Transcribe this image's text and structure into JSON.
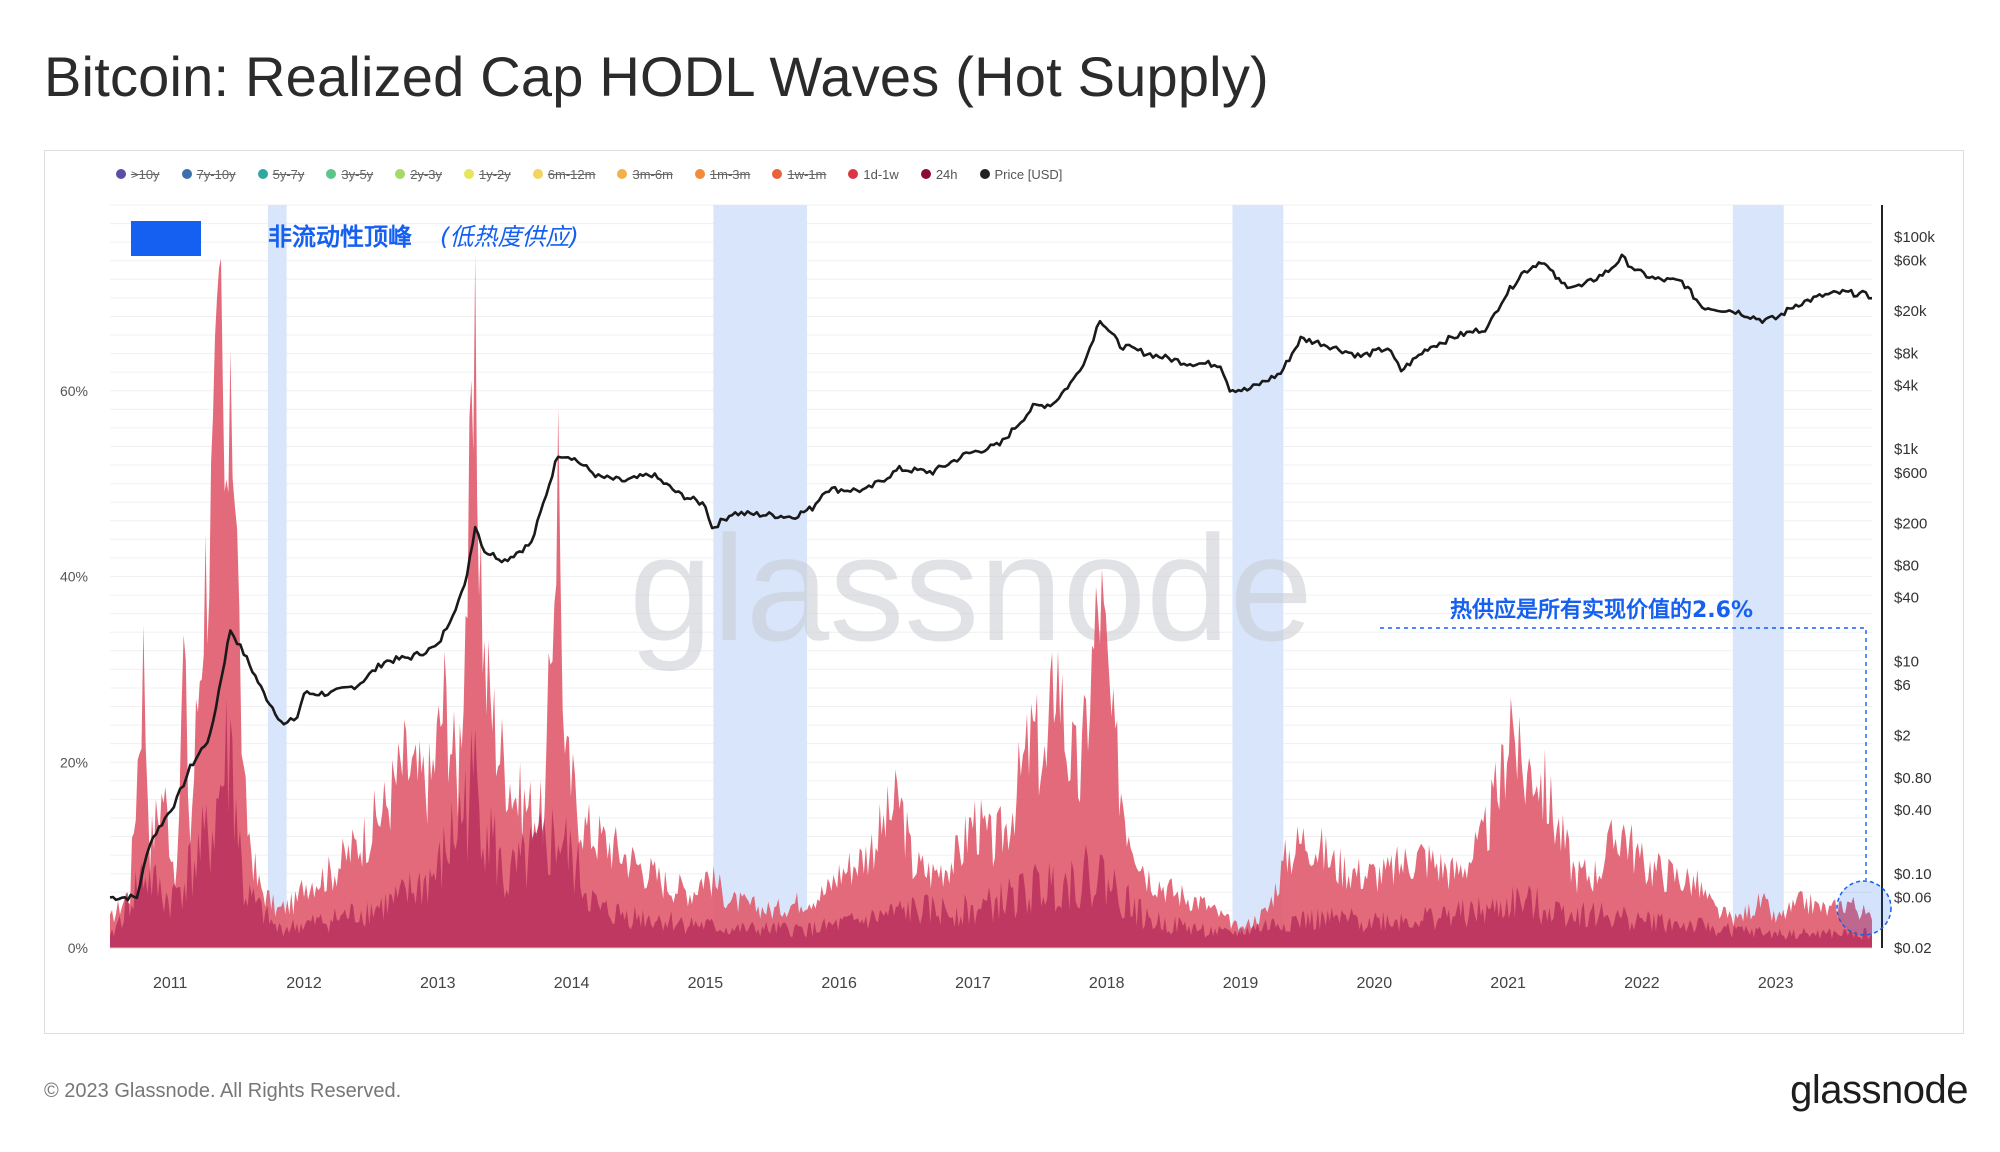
{
  "header": {
    "title": "Bitcoin: Realized Cap HODL Waves (Hot Supply)"
  },
  "footer": {
    "copyright": "© 2023 Glassnode. All Rights Reserved.",
    "logo": "glassnode"
  },
  "legend": [
    {
      "label": ">10y",
      "color": "#5b4ea6",
      "active": false
    },
    {
      "label": "7y-10y",
      "color": "#3d6fa8",
      "active": false
    },
    {
      "label": "5y-7y",
      "color": "#2fa8a0",
      "active": false
    },
    {
      "label": "3y-5y",
      "color": "#5cc58a",
      "active": false
    },
    {
      "label": "2y-3y",
      "color": "#a6d96a",
      "active": false
    },
    {
      "label": "1y-2y",
      "color": "#e6e65a",
      "active": false
    },
    {
      "label": "6m-12m",
      "color": "#f4d35e",
      "active": false
    },
    {
      "label": "3m-6m",
      "color": "#f6b04a",
      "active": false
    },
    {
      "label": "1m-3m",
      "color": "#f08c3a",
      "active": false
    },
    {
      "label": "1w-1m",
      "color": "#e8603c",
      "active": false
    },
    {
      "label": "1d-1w",
      "color": "#dc3545",
      "active": true
    },
    {
      "label": "24h",
      "color": "#8b0a3a",
      "active": true
    },
    {
      "label": "Price [USD]",
      "color": "#222222",
      "active": true
    }
  ],
  "annotations": {
    "box_legend_label": "非流动性顶峰",
    "box_legend_sub": "(低热度供应)",
    "hot_supply_note": "热供应是所有实现价值的2.6%"
  },
  "watermark": "glassnode",
  "colors": {
    "hot_supply_fill": "#e05a6c",
    "short_fill": "#b3285a",
    "price_line": "#1a1a1a",
    "highlight_band": "#d6e4fb",
    "annotation_blue": "#1560f0"
  },
  "chart_data": {
    "type": "area",
    "x_start": 2010.55,
    "x_end": 2023.72,
    "x_ticks": [
      {
        "value": 2011,
        "label": "2011"
      },
      {
        "value": 2012,
        "label": "2012"
      },
      {
        "value": 2013,
        "label": "2013"
      },
      {
        "value": 2014,
        "label": "2014"
      },
      {
        "value": 2015,
        "label": "2015"
      },
      {
        "value": 2016,
        "label": "2016"
      },
      {
        "value": 2017,
        "label": "2017"
      },
      {
        "value": 2018,
        "label": "2018"
      },
      {
        "value": 2019,
        "label": "2019"
      },
      {
        "value": 2020,
        "label": "2020"
      },
      {
        "value": 2021,
        "label": "2021"
      },
      {
        "value": 2022,
        "label": "2022"
      },
      {
        "value": 2023,
        "label": "2023"
      }
    ],
    "y_left": {
      "min": 0,
      "max": 80,
      "ticks": [
        {
          "value": 0,
          "label": "0%"
        },
        {
          "value": 20,
          "label": "20%"
        },
        {
          "value": 40,
          "label": "40%"
        },
        {
          "value": 60,
          "label": "60%"
        }
      ]
    },
    "y_right": {
      "scale": "log",
      "min": 0.02,
      "max": 200000,
      "ticks": [
        {
          "value": 0.02,
          "label": "$0.02"
        },
        {
          "value": 0.06,
          "label": "$0.06"
        },
        {
          "value": 0.1,
          "label": "$0.10"
        },
        {
          "value": 0.4,
          "label": "$0.40"
        },
        {
          "value": 0.8,
          "label": "$0.80"
        },
        {
          "value": 2,
          "label": "$2"
        },
        {
          "value": 6,
          "label": "$6"
        },
        {
          "value": 10,
          "label": "$10"
        },
        {
          "value": 40,
          "label": "$40"
        },
        {
          "value": 80,
          "label": "$80"
        },
        {
          "value": 200,
          "label": "$200"
        },
        {
          "value": 600,
          "label": "$600"
        },
        {
          "value": 1000,
          "label": "$1k"
        },
        {
          "value": 4000,
          "label": "$4k"
        },
        {
          "value": 8000,
          "label": "$8k"
        },
        {
          "value": 20000,
          "label": "$20k"
        },
        {
          "value": 60000,
          "label": "$60k"
        },
        {
          "value": 100000,
          "label": "$100k"
        }
      ]
    },
    "highlight_bands": [
      [
        2011.73,
        2011.87
      ],
      [
        2015.06,
        2015.76
      ],
      [
        2018.94,
        2019.32
      ],
      [
        2022.68,
        2023.06
      ]
    ],
    "series": [
      {
        "name": "1d-1w",
        "points": [
          [
            2010.55,
            3
          ],
          [
            2010.7,
            6
          ],
          [
            2010.8,
            31
          ],
          [
            2010.85,
            11
          ],
          [
            2010.95,
            17
          ],
          [
            2011.05,
            7
          ],
          [
            2011.1,
            32
          ],
          [
            2011.15,
            12
          ],
          [
            2011.25,
            38
          ],
          [
            2011.32,
            49
          ],
          [
            2011.38,
            67
          ],
          [
            2011.42,
            40
          ],
          [
            2011.45,
            72
          ],
          [
            2011.5,
            42
          ],
          [
            2011.55,
            16
          ],
          [
            2011.65,
            7
          ],
          [
            2011.8,
            4
          ],
          [
            2011.95,
            5
          ],
          [
            2012.0,
            7
          ],
          [
            2012.2,
            8
          ],
          [
            2012.45,
            12
          ],
          [
            2012.6,
            15
          ],
          [
            2012.75,
            20
          ],
          [
            2012.85,
            18
          ],
          [
            2012.95,
            18
          ],
          [
            2013.05,
            27
          ],
          [
            2013.15,
            18
          ],
          [
            2013.28,
            59
          ],
          [
            2013.35,
            30
          ],
          [
            2013.45,
            22
          ],
          [
            2013.6,
            16
          ],
          [
            2013.8,
            14
          ],
          [
            2013.9,
            53
          ],
          [
            2013.95,
            20
          ],
          [
            2014.1,
            13
          ],
          [
            2014.3,
            11
          ],
          [
            2014.5,
            9
          ],
          [
            2014.7,
            7
          ],
          [
            2014.9,
            6
          ],
          [
            2015.0,
            8
          ],
          [
            2015.2,
            5
          ],
          [
            2015.5,
            4
          ],
          [
            2015.7,
            5
          ],
          [
            2015.9,
            6
          ],
          [
            2016.0,
            8
          ],
          [
            2016.2,
            10
          ],
          [
            2016.45,
            16
          ],
          [
            2016.55,
            9
          ],
          [
            2016.7,
            8
          ],
          [
            2016.9,
            10
          ],
          [
            2017.0,
            14
          ],
          [
            2017.15,
            11
          ],
          [
            2017.25,
            13
          ],
          [
            2017.45,
            23
          ],
          [
            2017.55,
            19
          ],
          [
            2017.62,
            32
          ],
          [
            2017.7,
            22
          ],
          [
            2017.8,
            18
          ],
          [
            2017.95,
            38
          ],
          [
            2018.05,
            22
          ],
          [
            2018.15,
            14
          ],
          [
            2018.3,
            8
          ],
          [
            2018.5,
            6
          ],
          [
            2018.7,
            5
          ],
          [
            2018.9,
            3
          ],
          [
            2019.0,
            2
          ],
          [
            2019.2,
            4
          ],
          [
            2019.35,
            10
          ],
          [
            2019.5,
            12
          ],
          [
            2019.7,
            9
          ],
          [
            2019.9,
            8
          ],
          [
            2020.1,
            8
          ],
          [
            2020.2,
            9
          ],
          [
            2020.35,
            10
          ],
          [
            2020.6,
            8
          ],
          [
            2020.8,
            11
          ],
          [
            2020.95,
            18
          ],
          [
            2021.02,
            26
          ],
          [
            2021.1,
            18
          ],
          [
            2021.2,
            20
          ],
          [
            2021.35,
            14
          ],
          [
            2021.5,
            8
          ],
          [
            2021.65,
            8
          ],
          [
            2021.85,
            13
          ],
          [
            2022.0,
            9
          ],
          [
            2022.2,
            8
          ],
          [
            2022.4,
            7
          ],
          [
            2022.55,
            4
          ],
          [
            2022.7,
            3
          ],
          [
            2022.8,
            4
          ],
          [
            2022.9,
            5
          ],
          [
            2023.0,
            3
          ],
          [
            2023.1,
            4
          ],
          [
            2023.2,
            5
          ],
          [
            2023.4,
            4
          ],
          [
            2023.55,
            5
          ],
          [
            2023.72,
            3
          ]
        ]
      },
      {
        "name": "24h",
        "points": [
          [
            2010.55,
            1
          ],
          [
            2010.8,
            8
          ],
          [
            2011.0,
            5
          ],
          [
            2011.3,
            12
          ],
          [
            2011.45,
            22
          ],
          [
            2011.55,
            6
          ],
          [
            2011.8,
            2
          ],
          [
            2012.2,
            3
          ],
          [
            2012.7,
            5
          ],
          [
            2013.0,
            8
          ],
          [
            2013.28,
            18
          ],
          [
            2013.5,
            7
          ],
          [
            2013.9,
            12
          ],
          [
            2014.2,
            4
          ],
          [
            2014.7,
            3
          ],
          [
            2015.2,
            2
          ],
          [
            2015.8,
            2
          ],
          [
            2016.2,
            3
          ],
          [
            2016.5,
            4
          ],
          [
            2017.0,
            4
          ],
          [
            2017.6,
            7
          ],
          [
            2017.95,
            8
          ],
          [
            2018.3,
            3
          ],
          [
            2018.9,
            1.5
          ],
          [
            2019.4,
            3
          ],
          [
            2020.2,
            3
          ],
          [
            2020.9,
            4
          ],
          [
            2021.05,
            5
          ],
          [
            2021.4,
            4
          ],
          [
            2022.0,
            3
          ],
          [
            2022.6,
            2
          ],
          [
            2023.0,
            1.5
          ],
          [
            2023.72,
            1.5
          ]
        ]
      },
      {
        "name": "Price [USD]",
        "points": [
          [
            2010.55,
            0.06
          ],
          [
            2010.75,
            0.06
          ],
          [
            2010.85,
            0.2
          ],
          [
            2011.05,
            0.5
          ],
          [
            2011.15,
            1
          ],
          [
            2011.3,
            2
          ],
          [
            2011.45,
            20
          ],
          [
            2011.55,
            12
          ],
          [
            2011.7,
            5
          ],
          [
            2011.85,
            2.5
          ],
          [
            2011.95,
            3
          ],
          [
            2012.0,
            5
          ],
          [
            2012.2,
            5
          ],
          [
            2012.4,
            6
          ],
          [
            2012.6,
            10
          ],
          [
            2012.8,
            11
          ],
          [
            2013.0,
            14
          ],
          [
            2013.2,
            50
          ],
          [
            2013.28,
            190
          ],
          [
            2013.35,
            110
          ],
          [
            2013.5,
            90
          ],
          [
            2013.7,
            130
          ],
          [
            2013.9,
            900
          ],
          [
            2014.0,
            850
          ],
          [
            2014.2,
            550
          ],
          [
            2014.4,
            500
          ],
          [
            2014.6,
            580
          ],
          [
            2014.8,
            380
          ],
          [
            2015.0,
            300
          ],
          [
            2015.05,
            180
          ],
          [
            2015.2,
            250
          ],
          [
            2015.5,
            240
          ],
          [
            2015.65,
            230
          ],
          [
            2015.8,
            280
          ],
          [
            2015.9,
            420
          ],
          [
            2016.2,
            410
          ],
          [
            2016.45,
            650
          ],
          [
            2016.7,
            610
          ],
          [
            2016.95,
            900
          ],
          [
            2017.2,
            1100
          ],
          [
            2017.45,
            2500
          ],
          [
            2017.6,
            2700
          ],
          [
            2017.75,
            4500
          ],
          [
            2017.85,
            7500
          ],
          [
            2017.95,
            17000
          ],
          [
            2018.1,
            9500
          ],
          [
            2018.3,
            8000
          ],
          [
            2018.6,
            6500
          ],
          [
            2018.85,
            6300
          ],
          [
            2018.92,
            3700
          ],
          [
            2019.05,
            3600
          ],
          [
            2019.3,
            5200
          ],
          [
            2019.45,
            11000
          ],
          [
            2019.6,
            10000
          ],
          [
            2019.9,
            7500
          ],
          [
            2020.1,
            9000
          ],
          [
            2020.2,
            5500
          ],
          [
            2020.4,
            9000
          ],
          [
            2020.6,
            11500
          ],
          [
            2020.85,
            14000
          ],
          [
            2020.95,
            25000
          ],
          [
            2021.1,
            45000
          ],
          [
            2021.25,
            60000
          ],
          [
            2021.4,
            36000
          ],
          [
            2021.55,
            34000
          ],
          [
            2021.75,
            48000
          ],
          [
            2021.85,
            64000
          ],
          [
            2021.97,
            47000
          ],
          [
            2022.1,
            40000
          ],
          [
            2022.3,
            38000
          ],
          [
            2022.45,
            22000
          ],
          [
            2022.7,
            20000
          ],
          [
            2022.9,
            16500
          ],
          [
            2023.0,
            17000
          ],
          [
            2023.15,
            23000
          ],
          [
            2023.35,
            28000
          ],
          [
            2023.5,
            30000
          ],
          [
            2023.65,
            29000
          ],
          [
            2023.72,
            26500
          ]
        ]
      }
    ]
  }
}
